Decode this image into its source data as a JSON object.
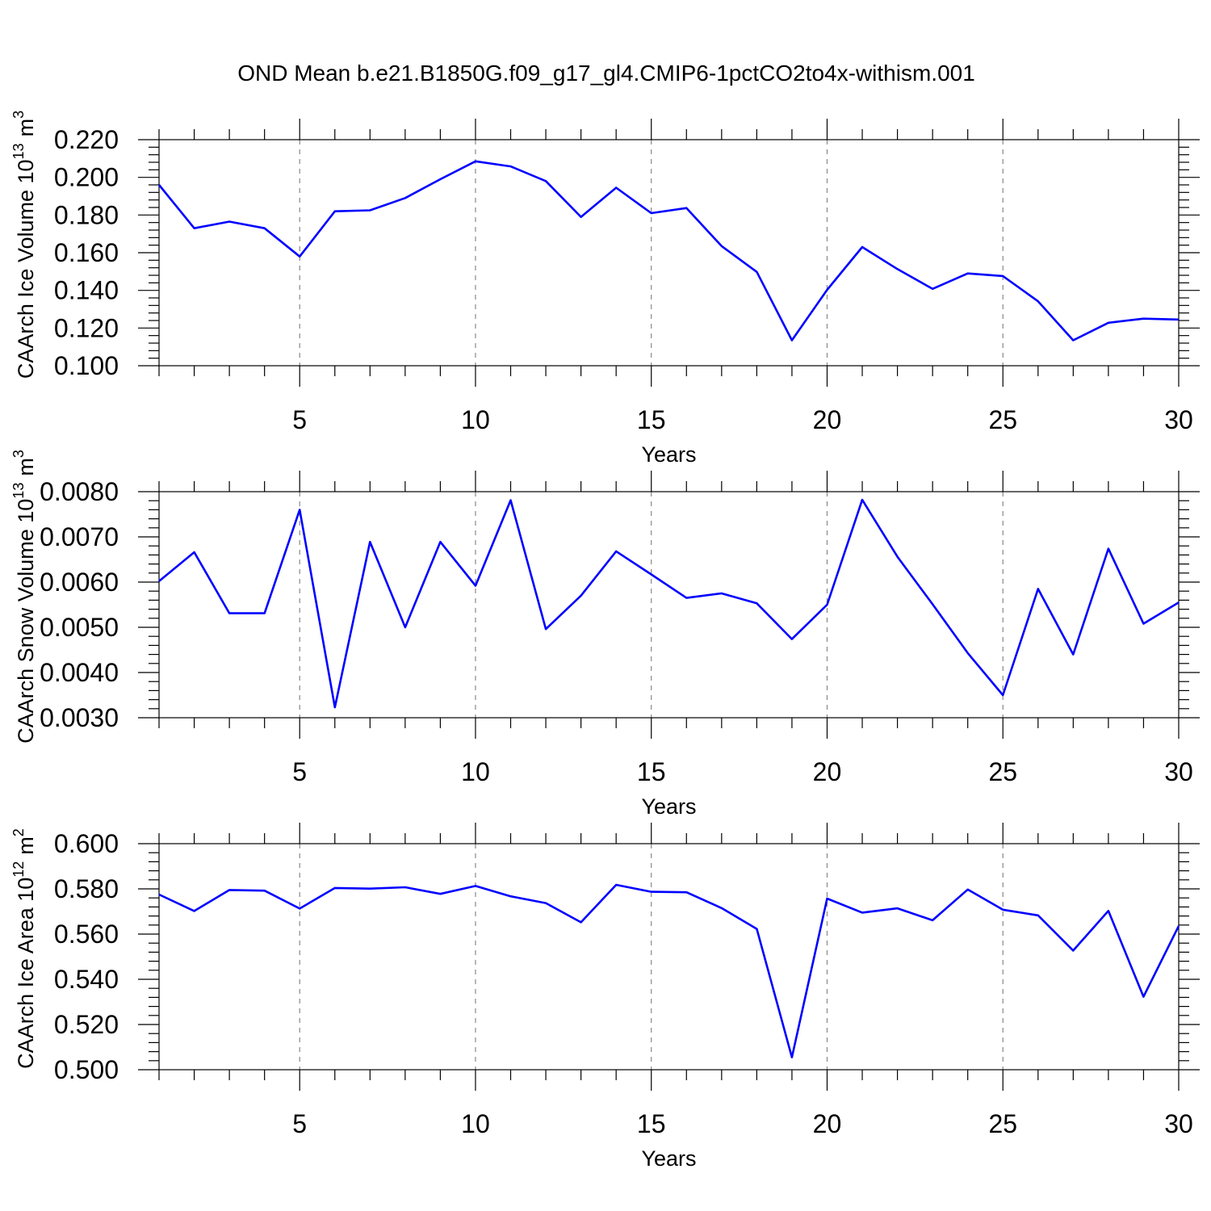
{
  "title": "OND Mean b.e21.B1850G.f09_g17_gl4.CMIP6-1pctCO2to4x-withism.001",
  "chart_data": [
    {
      "type": "line",
      "xlabel": "Years",
      "ylabel": "CAArch Ice Volume 10",
      "ylabel_exp": "13",
      "ylabel_unit": "m",
      "ylabel_unit_exp": "3",
      "xlim": [
        1,
        30
      ],
      "ylim": [
        0.1,
        0.22
      ],
      "x_ticks": [
        "5",
        "10",
        "15",
        "20",
        "25",
        "30"
      ],
      "y_ticks": [
        "0.100",
        "0.120",
        "0.140",
        "0.160",
        "0.180",
        "0.200",
        "0.220"
      ],
      "grid": "vertical dashed at major x ticks",
      "line_color": "#0000ff",
      "x": [
        1,
        2,
        3,
        4,
        5,
        6,
        7,
        8,
        9,
        10,
        11,
        12,
        13,
        14,
        15,
        16,
        17,
        18,
        19,
        20,
        21,
        22,
        23,
        24,
        25,
        26,
        27,
        28,
        29,
        30
      ],
      "values": [
        0.196,
        0.173,
        0.1765,
        0.173,
        0.158,
        0.182,
        0.1825,
        0.189,
        0.199,
        0.2085,
        0.2058,
        0.198,
        0.179,
        0.1945,
        0.181,
        0.1837,
        0.1635,
        0.1498,
        0.1135,
        0.1403,
        0.163,
        0.1513,
        0.1408,
        0.149,
        0.1476,
        0.1342,
        0.1135,
        0.1228,
        0.125,
        0.1245
      ]
    },
    {
      "type": "line",
      "xlabel": "Years",
      "ylabel": "CAArch Snow Volume 10",
      "ylabel_exp": "13",
      "ylabel_unit": "m",
      "ylabel_unit_exp": "3",
      "xlim": [
        1,
        30
      ],
      "ylim": [
        0.003,
        0.008
      ],
      "x_ticks": [
        "5",
        "10",
        "15",
        "20",
        "25",
        "30"
      ],
      "y_ticks": [
        "0.0030",
        "0.0040",
        "0.0050",
        "0.0060",
        "0.0070",
        "0.0080"
      ],
      "grid": "vertical dashed at major x ticks",
      "line_color": "#0000ff",
      "x": [
        1,
        2,
        3,
        4,
        5,
        6,
        7,
        8,
        9,
        10,
        11,
        12,
        13,
        14,
        15,
        16,
        17,
        18,
        19,
        20,
        21,
        22,
        23,
        24,
        25,
        26,
        27,
        28,
        29,
        30
      ],
      "values": [
        0.00602,
        0.00666,
        0.00531,
        0.00531,
        0.0076,
        0.00323,
        0.00689,
        0.005,
        0.00689,
        0.00592,
        0.00781,
        0.00496,
        0.0057,
        0.00668,
        0.00617,
        0.00565,
        0.00575,
        0.00553,
        0.00474,
        0.0055,
        0.00782,
        0.00656,
        0.00551,
        0.00443,
        0.0035,
        0.00585,
        0.0044,
        0.00674,
        0.00508,
        0.00555
      ]
    },
    {
      "type": "line",
      "xlabel": "Years",
      "ylabel": "CAArch Ice Area 10",
      "ylabel_exp": "12",
      "ylabel_unit": "m",
      "ylabel_unit_exp": "2",
      "xlim": [
        1,
        30
      ],
      "ylim": [
        0.5,
        0.6
      ],
      "x_ticks": [
        "5",
        "10",
        "15",
        "20",
        "25",
        "30"
      ],
      "y_ticks": [
        "0.500",
        "0.520",
        "0.540",
        "0.560",
        "0.580",
        "0.600"
      ],
      "grid": "vertical dashed at major x ticks",
      "line_color": "#0000ff",
      "x": [
        1,
        2,
        3,
        4,
        5,
        6,
        7,
        8,
        9,
        10,
        11,
        12,
        13,
        14,
        15,
        16,
        17,
        18,
        19,
        20,
        21,
        22,
        23,
        24,
        25,
        26,
        27,
        28,
        29,
        30
      ],
      "values": [
        0.5775,
        0.5702,
        0.5795,
        0.5792,
        0.5713,
        0.5804,
        0.5801,
        0.5807,
        0.5778,
        0.5813,
        0.5767,
        0.5737,
        0.5652,
        0.5818,
        0.5787,
        0.5785,
        0.5715,
        0.5623,
        0.5055,
        0.5757,
        0.5695,
        0.5714,
        0.5661,
        0.5797,
        0.5708,
        0.5683,
        0.5527,
        0.5703,
        0.5323,
        0.5636
      ]
    }
  ]
}
